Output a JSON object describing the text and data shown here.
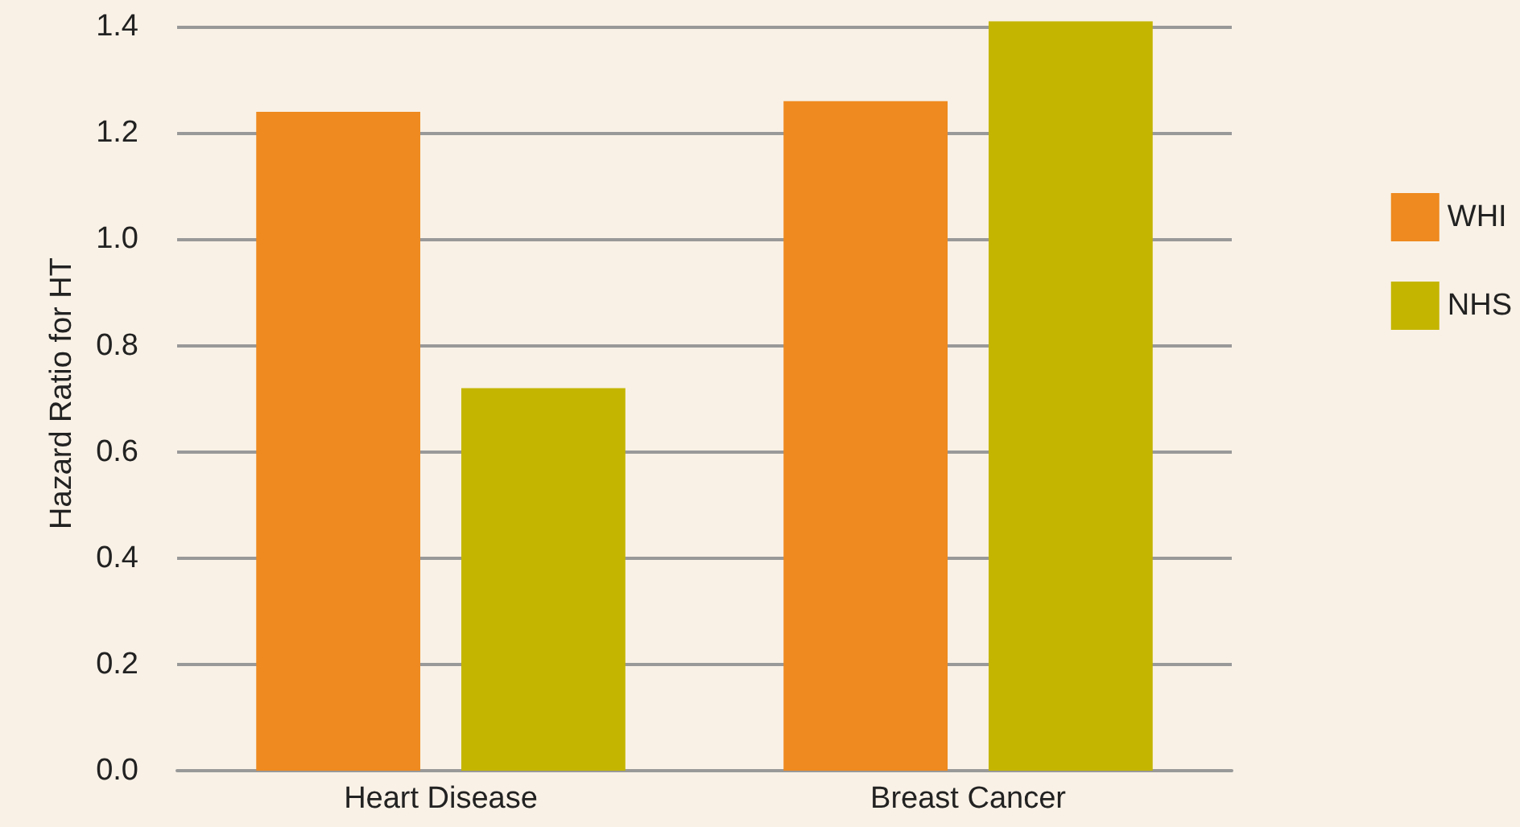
{
  "chart_data": {
    "type": "bar",
    "ylabel": "Hazard Ratio for HT",
    "categories": [
      "Heart Disease",
      "Breast Cancer"
    ],
    "series": [
      {
        "name": "WHI",
        "color": "#ee8a1f",
        "values": [
          1.24,
          1.26
        ]
      },
      {
        "name": "NHS",
        "color": "#c4b500",
        "values": [
          0.72,
          1.41
        ]
      }
    ],
    "ylim": [
      0,
      1.42
    ],
    "yticks": [
      "0.0",
      0.2,
      0.4,
      0.6,
      0.8,
      "1.0",
      1.2,
      1.4
    ],
    "grid": "y",
    "legend": "right"
  }
}
